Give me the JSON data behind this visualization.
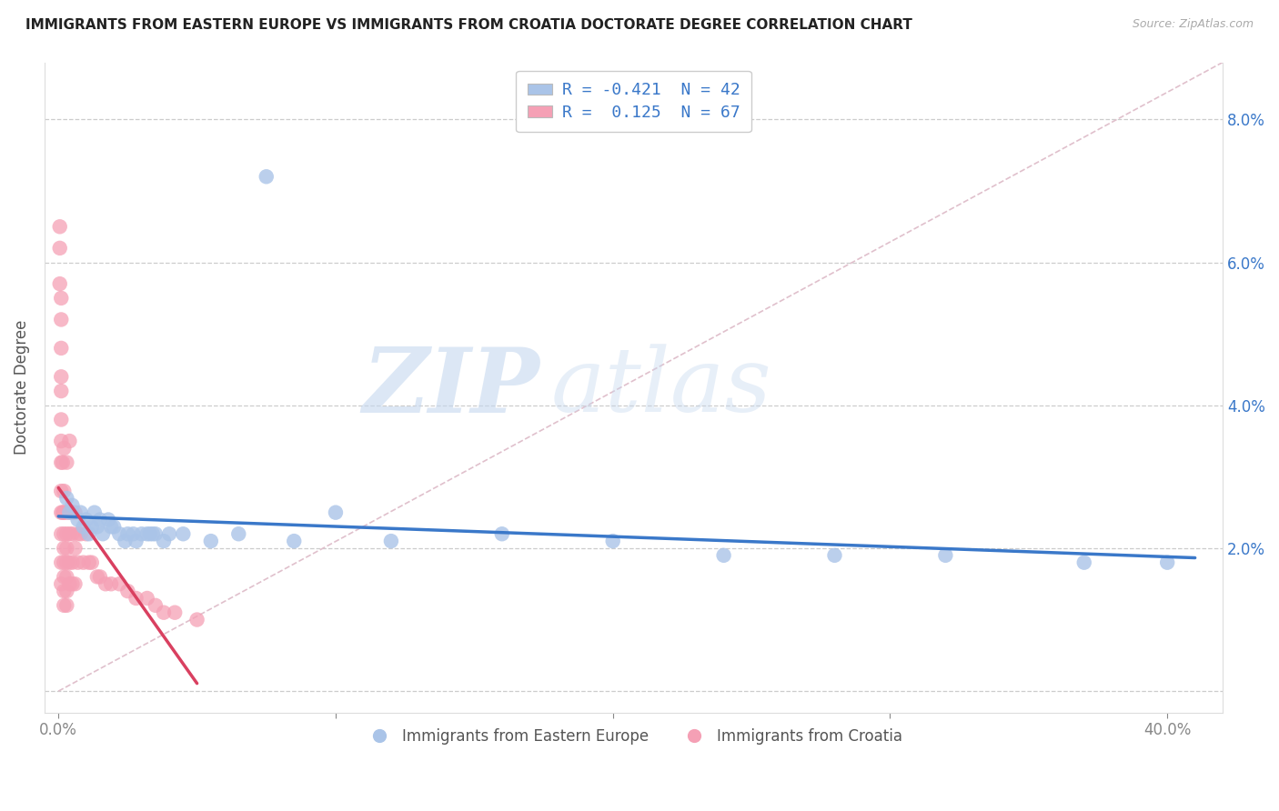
{
  "title": "IMMIGRANTS FROM EASTERN EUROPE VS IMMIGRANTS FROM CROATIA DOCTORATE DEGREE CORRELATION CHART",
  "source": "Source: ZipAtlas.com",
  "ylabel": "Doctorate Degree",
  "xlim": [
    -0.005,
    0.42
  ],
  "ylim": [
    -0.003,
    0.088
  ],
  "x_ticks": [
    0.0,
    0.1,
    0.2,
    0.3,
    0.4
  ],
  "x_tick_labels": [
    "0.0%",
    "",
    "",
    "",
    "40.0%"
  ],
  "y_ticks": [
    0.0,
    0.02,
    0.04,
    0.06,
    0.08
  ],
  "y_tick_labels_left": [
    "",
    "",
    "",
    "",
    ""
  ],
  "y_tick_labels_right": [
    "",
    "2.0%",
    "4.0%",
    "6.0%",
    "8.0%"
  ],
  "legend_entry1": "R = -0.421  N = 42",
  "legend_entry2": "R =  0.125  N = 67",
  "series1_color": "#aac4e8",
  "series2_color": "#f5a0b5",
  "trendline1_color": "#3a78c9",
  "trendline2_color": "#d94060",
  "diagonal_color": "#e0c0cc",
  "watermark_zip": "ZIP",
  "watermark_atlas": "atlas",
  "legend_series1": "Immigrants from Eastern Europe",
  "legend_series2": "Immigrants from Croatia",
  "blue_x": [
    0.003,
    0.004,
    0.005,
    0.007,
    0.008,
    0.009,
    0.01,
    0.011,
    0.012,
    0.013,
    0.014,
    0.015,
    0.016,
    0.018,
    0.019,
    0.02,
    0.022,
    0.024,
    0.025,
    0.027,
    0.028,
    0.03,
    0.032,
    0.033,
    0.034,
    0.035,
    0.038,
    0.04,
    0.045,
    0.055,
    0.065,
    0.075,
    0.085,
    0.1,
    0.12,
    0.16,
    0.2,
    0.24,
    0.28,
    0.32,
    0.37,
    0.4
  ],
  "blue_y": [
    0.027,
    0.025,
    0.026,
    0.024,
    0.025,
    0.023,
    0.024,
    0.022,
    0.023,
    0.025,
    0.023,
    0.024,
    0.022,
    0.024,
    0.023,
    0.023,
    0.022,
    0.021,
    0.022,
    0.022,
    0.021,
    0.022,
    0.022,
    0.022,
    0.022,
    0.022,
    0.021,
    0.022,
    0.022,
    0.021,
    0.022,
    0.072,
    0.021,
    0.025,
    0.021,
    0.022,
    0.021,
    0.019,
    0.019,
    0.019,
    0.018,
    0.018
  ],
  "pink_x": [
    0.0005,
    0.0005,
    0.0005,
    0.001,
    0.001,
    0.001,
    0.001,
    0.001,
    0.001,
    0.001,
    0.001,
    0.001,
    0.001,
    0.001,
    0.001,
    0.001,
    0.0015,
    0.0015,
    0.002,
    0.002,
    0.002,
    0.002,
    0.002,
    0.002,
    0.002,
    0.002,
    0.002,
    0.002,
    0.003,
    0.003,
    0.003,
    0.003,
    0.003,
    0.003,
    0.003,
    0.003,
    0.004,
    0.004,
    0.004,
    0.004,
    0.004,
    0.005,
    0.005,
    0.005,
    0.005,
    0.006,
    0.006,
    0.006,
    0.007,
    0.007,
    0.008,
    0.009,
    0.01,
    0.011,
    0.012,
    0.014,
    0.015,
    0.017,
    0.019,
    0.022,
    0.025,
    0.028,
    0.032,
    0.035,
    0.038,
    0.042,
    0.05
  ],
  "pink_y": [
    0.065,
    0.062,
    0.057,
    0.055,
    0.052,
    0.048,
    0.044,
    0.042,
    0.038,
    0.035,
    0.032,
    0.028,
    0.025,
    0.022,
    0.018,
    0.015,
    0.032,
    0.025,
    0.034,
    0.028,
    0.025,
    0.022,
    0.02,
    0.018,
    0.016,
    0.014,
    0.012,
    0.025,
    0.032,
    0.025,
    0.022,
    0.02,
    0.018,
    0.016,
    0.014,
    0.012,
    0.035,
    0.025,
    0.022,
    0.018,
    0.015,
    0.025,
    0.022,
    0.018,
    0.015,
    0.025,
    0.02,
    0.015,
    0.022,
    0.018,
    0.022,
    0.018,
    0.022,
    0.018,
    0.018,
    0.016,
    0.016,
    0.015,
    0.015,
    0.015,
    0.014,
    0.013,
    0.013,
    0.012,
    0.011,
    0.011,
    0.01
  ]
}
